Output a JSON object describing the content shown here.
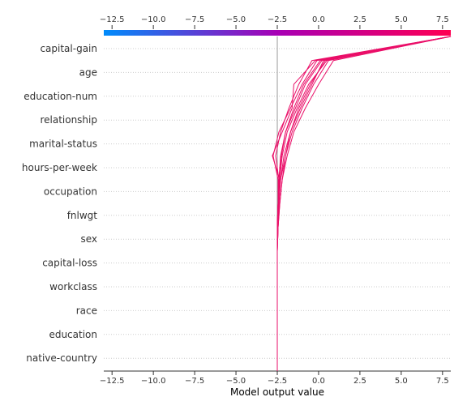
{
  "chart_data": {
    "type": "line",
    "subtype": "shap-decision-plot",
    "xlabel": "Model output value",
    "xlim": [
      -13.0,
      8.0
    ],
    "x_ticks": [
      -12.5,
      -10.0,
      -7.5,
      -5.0,
      -2.5,
      0.0,
      2.5,
      5.0,
      7.5
    ],
    "x_tick_labels": [
      "−12.5",
      "−10.0",
      "−7.5",
      "−5.0",
      "−2.5",
      "0.0",
      "2.5",
      "5.0",
      "7.5"
    ],
    "base_value": -2.5,
    "features": [
      "capital-gain",
      "age",
      "education-num",
      "relationship",
      "marital-status",
      "hours-per-week",
      "occupation",
      "fnlwgt",
      "sex",
      "capital-loss",
      "workclass",
      "race",
      "education",
      "native-country"
    ],
    "colormap": [
      "#008bfb",
      "#ff0052"
    ],
    "line_color": "#ea0e68",
    "gridlines": "dotted",
    "series": [
      {
        "values": [
          8.0,
          0.1,
          -0.9,
          -1.5,
          -2.0,
          -2.25,
          -2.4,
          -2.45,
          -2.5,
          -2.5,
          -2.5,
          -2.5,
          -2.5,
          -2.5,
          -2.5
        ]
      },
      {
        "values": [
          8.0,
          0.4,
          -0.5,
          -1.2,
          -1.7,
          -2.0,
          -2.3,
          -2.4,
          -2.45,
          -2.5,
          -2.5,
          -2.5,
          -2.5,
          -2.5,
          -2.5
        ]
      },
      {
        "values": [
          8.0,
          0.6,
          -0.3,
          -1.0,
          -1.6,
          -2.0,
          -2.2,
          -2.35,
          -2.45,
          -2.5,
          -2.5,
          -2.5,
          -2.5,
          -2.5,
          -2.5
        ]
      },
      {
        "values": [
          8.0,
          0.9,
          0.0,
          -0.8,
          -1.5,
          -1.9,
          -2.2,
          -2.35,
          -2.45,
          -2.5,
          -2.5,
          -2.5,
          -2.5,
          -2.5,
          -2.5
        ]
      },
      {
        "values": [
          8.0,
          0.3,
          -0.4,
          -1.1,
          -1.7,
          -2.1,
          -2.3,
          -2.4,
          -2.45,
          -2.5,
          -2.5,
          -2.5,
          -2.5,
          -2.5,
          -2.5
        ]
      },
      {
        "values": [
          8.0,
          -0.2,
          -1.5,
          -1.6,
          -2.2,
          -2.8,
          -2.35,
          -2.45,
          -2.5,
          -2.5,
          -2.5,
          -2.5,
          -2.5,
          -2.5,
          -2.5
        ]
      },
      {
        "values": [
          8.0,
          -0.4,
          -1.2,
          -1.8,
          -2.3,
          -2.6,
          -2.4,
          -2.45,
          -2.5,
          -2.5,
          -2.5,
          -2.5,
          -2.5,
          -2.5,
          -2.5
        ]
      },
      {
        "values": [
          8.0,
          0.2,
          -0.8,
          -1.4,
          -2.0,
          -2.3,
          -2.4,
          -2.45,
          -2.5,
          -2.5,
          -2.5,
          -2.5,
          -2.5,
          -2.5,
          -2.5
        ]
      },
      {
        "values": [
          8.0,
          -0.1,
          -1.0,
          -1.7,
          -2.4,
          -2.75,
          -2.45,
          -2.45,
          -2.5,
          -2.5,
          -2.5,
          -2.5,
          -2.5,
          -2.5,
          -2.5
        ]
      },
      {
        "values": [
          8.0,
          0.5,
          -0.6,
          -1.3,
          -1.9,
          -2.2,
          -2.35,
          -2.45,
          -2.5,
          -2.5,
          -2.5,
          -2.5,
          -2.5,
          -2.5,
          -2.5
        ]
      }
    ]
  }
}
